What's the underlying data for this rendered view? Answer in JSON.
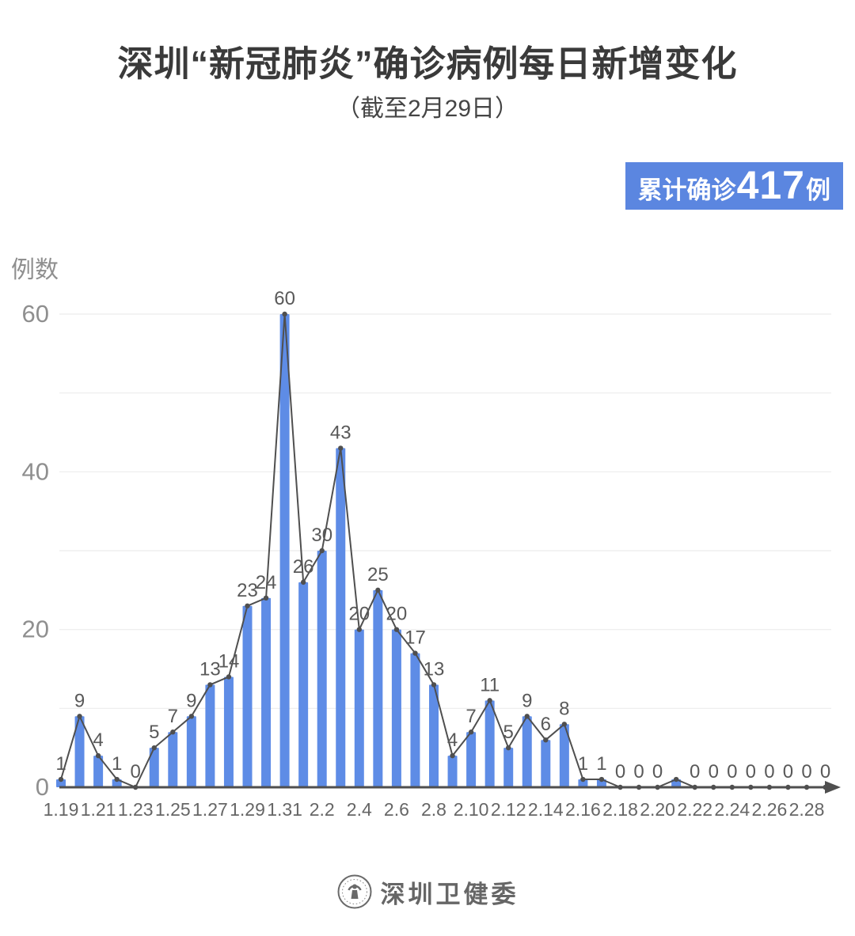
{
  "header": {
    "title": "深圳“新冠肺炎”确诊病例每日新增变化",
    "subtitle": "（截至2月29日）"
  },
  "summary_badge": {
    "prefix": "累计确诊",
    "value": "417",
    "suffix": "例",
    "bg_color": "#5b86e0",
    "text_color": "#ffffff"
  },
  "chart_data": {
    "type": "bar",
    "title": "深圳“新冠肺炎”确诊病例每日新增变化",
    "subtitle": "（截至2月29日）",
    "xlabel": "",
    "ylabel": "例数",
    "categories": [
      "1.19",
      "1.20",
      "1.21",
      "1.22",
      "1.23",
      "1.24",
      "1.25",
      "1.26",
      "1.27",
      "1.28",
      "1.29",
      "1.30",
      "1.31",
      "2.1",
      "2.2",
      "2.3",
      "2.4",
      "2.5",
      "2.6",
      "2.7",
      "2.8",
      "2.9",
      "2.10",
      "2.11",
      "2.12",
      "2.13",
      "2.14",
      "2.15",
      "2.16",
      "2.17",
      "2.18",
      "2.19",
      "2.20",
      "2.21",
      "2.22",
      "2.23",
      "2.24",
      "2.25",
      "2.26",
      "2.27",
      "2.28",
      "2.29"
    ],
    "values": [
      1,
      9,
      4,
      1,
      0,
      5,
      7,
      9,
      13,
      14,
      23,
      24,
      60,
      26,
      30,
      43,
      20,
      25,
      20,
      17,
      13,
      4,
      7,
      11,
      5,
      9,
      6,
      8,
      1,
      1,
      0,
      0,
      0,
      1,
      0,
      0,
      0,
      0,
      0,
      0,
      0,
      0
    ],
    "data_labels": [
      "1",
      "9",
      "4",
      "1",
      "0",
      "5",
      "7",
      "9",
      "13",
      "14",
      "23",
      "24",
      "60",
      "26",
      "30",
      "43",
      "20",
      "25",
      "20",
      "17",
      "13",
      "4",
      "7",
      "11",
      "5",
      "9",
      "6",
      "8",
      "1",
      "1",
      "0",
      "0",
      "0",
      "",
      "0",
      "0",
      "0",
      "0",
      "0",
      "0",
      "0",
      "0"
    ],
    "hidden_label_point": "2.21",
    "cumulative_total": 417,
    "x_tick_labels": [
      "1.19",
      "1.21",
      "1.23",
      "1.25",
      "1.27",
      "1.29",
      "1.31",
      "2.2",
      "2.4",
      "2.6",
      "2.8",
      "2.10",
      "2.12",
      "2.14",
      "2.16",
      "2.18",
      "2.20",
      "2.22",
      "2.24",
      "2.26",
      "2.28"
    ],
    "y_ticks": [
      0,
      20,
      40,
      60
    ],
    "ylim": [
      0,
      60
    ],
    "grid": "horizontal every 10, no vertical grid, no legend",
    "legend": "none",
    "overlay_line": "same series drawn as line with point markers over bars, x-axis ends in right arrow",
    "bar_color": "#5e8ce6",
    "line_color": "#4f4f4f",
    "grid_color": "#ececec",
    "axis_tick_color": "#8f8f8f",
    "x_tick_color": "#666666",
    "value_label_color": "#595959"
  },
  "footer": {
    "logo": "shenzhen-health-commission-emblem",
    "text": "深圳卫健委"
  }
}
